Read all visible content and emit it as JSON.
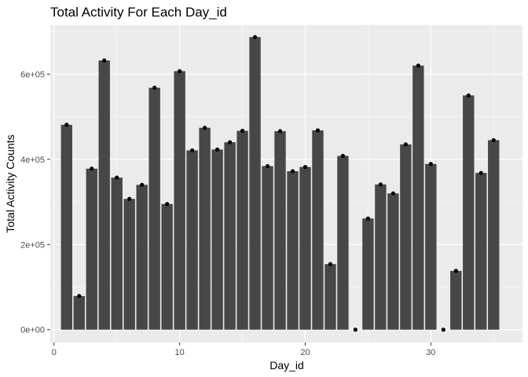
{
  "chart_data": {
    "type": "bar",
    "title": "Total Activity For Each Day_id",
    "xlabel": "Day_id",
    "ylabel": "Total Activity Counts",
    "xlim": [
      -0.3,
      37.3
    ],
    "ylim": [
      -30000,
      715000
    ],
    "x_ticks": [
      0,
      10,
      20,
      30
    ],
    "x_tick_labels": [
      "0",
      "10",
      "20",
      "30"
    ],
    "y_ticks": [
      0,
      200000,
      400000,
      600000
    ],
    "y_tick_labels": [
      "0e+00",
      "2e+05",
      "4e+05",
      "6e+05"
    ],
    "grid": true,
    "legend": "none",
    "x": [
      1,
      2,
      3,
      4,
      5,
      6,
      7,
      8,
      9,
      10,
      11,
      12,
      13,
      14,
      15,
      16,
      17,
      18,
      19,
      20,
      21,
      22,
      23,
      24,
      25,
      26,
      27,
      28,
      29,
      30,
      31,
      32,
      33,
      34,
      35
    ],
    "values": [
      481000,
      79000,
      378000,
      632000,
      357000,
      307000,
      340000,
      568000,
      295000,
      607000,
      421000,
      474000,
      423000,
      440000,
      467000,
      687000,
      384000,
      466000,
      372000,
      382000,
      468000,
      154000,
      408000,
      0,
      261000,
      341000,
      320000,
      435000,
      620000,
      389000,
      0,
      138000,
      550000,
      368000,
      445000
    ],
    "colors": {
      "panel": "#ebebeb",
      "grid_major": "#ffffff",
      "bar": "#474747",
      "point": "#000000",
      "tick": "#333333",
      "tick_label": "#4d4d4d"
    }
  }
}
